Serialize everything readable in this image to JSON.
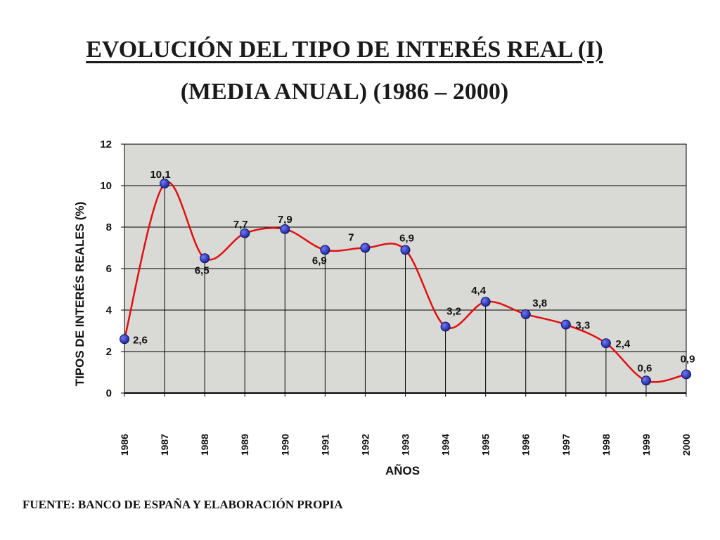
{
  "title_line1": "EVOLUCIÓN DEL TIPO DE  INTERÉS REAL (I)",
  "title_line2": "(MEDIA ANUAL)  (1986 – 2000)",
  "source": "FUENTE: BANCO DE ESPAÑA Y ELABORACIÓN PROPIA",
  "colors": {
    "line": "#e01010",
    "marker": "#2b35c8",
    "plot_bg": "#d9d9d6",
    "grid": "#000000"
  },
  "chart_data": {
    "type": "line",
    "xlabel": "AÑOS",
    "ylabel": "TIPOS DE INTERÉS REALES (%)",
    "ylim": [
      0,
      12
    ],
    "yticks": [
      0,
      2,
      4,
      6,
      8,
      10,
      12
    ],
    "grid": true,
    "categories": [
      "1986",
      "1987",
      "1988",
      "1989",
      "1990",
      "1991",
      "1992",
      "1993",
      "1994",
      "1995",
      "1996",
      "1997",
      "1998",
      "1999",
      "2000"
    ],
    "values": [
      2.6,
      10.1,
      6.5,
      7.7,
      7.9,
      6.9,
      7,
      6.9,
      3.2,
      4.4,
      3.8,
      3.3,
      2.4,
      0.6,
      0.9
    ],
    "data_labels": [
      "2,6",
      "10,1",
      "6,5",
      "7,7",
      "7,9",
      "6,9",
      "7",
      "6,9",
      "3,2",
      "4,4",
      "3,8",
      "3,3",
      "2,4",
      "0,6",
      "0,9"
    ]
  }
}
